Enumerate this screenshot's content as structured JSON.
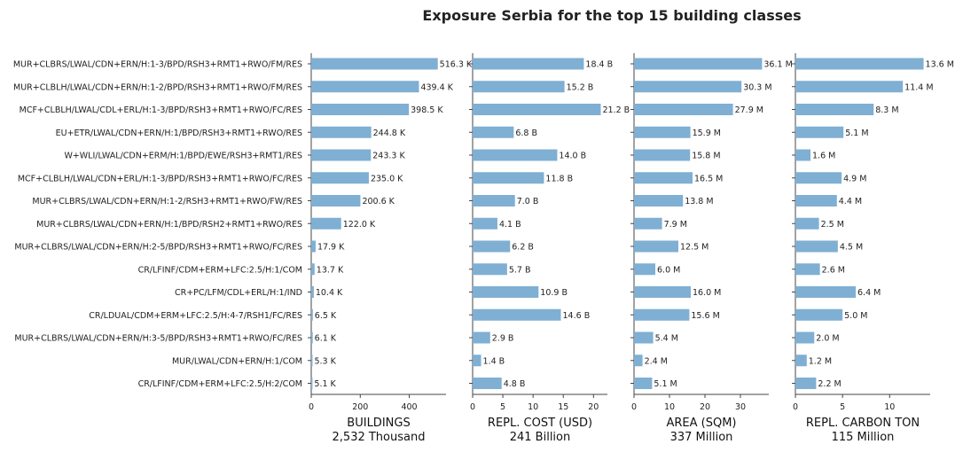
{
  "chart_data": {
    "type": "bar",
    "title": "Exposure Serbia for the top 15 building classes",
    "categories": [
      "MUR+CLBRS/LWAL/CDN+ERN/H:1-3/BPD/RSH3+RMT1+RWO/FM/RES",
      "MUR+CLBLH/LWAL/CDN+ERN/H:1-2/BPD/RSH3+RMT1+RWO/FM/RES",
      "MCF+CLBLH/LWAL/CDL+ERL/H:1-3/BPD/RSH3+RMT1+RWO/FC/RES",
      "EU+ETR/LWAL/CDN+ERN/H:1/BPD/RSH3+RMT1+RWO/RES",
      "W+WLI/LWAL/CDN+ERM/H:1/BPD/EWE/RSH3+RMT1/RES",
      "MCF+CLBLH/LWAL/CDN+ERL/H:1-3/BPD/RSH3+RMT1+RWO/FC/RES",
      "MUR+CLBRS/LWAL/CDN+ERN/H:1-2/RSH3+RMT1+RWO/FW/RES",
      "MUR+CLBRS/LWAL/CDN+ERN/H:1/BPD/RSH2+RMT1+RWO/RES",
      "MUR+CLBRS/LWAL/CDN+ERN/H:2-5/BPD/RSH3+RMT1+RWO/FC/RES",
      "CR/LFINF/CDM+ERM+LFC:2.5/H:1/COM",
      "CR+PC/LFM/CDL+ERL/H:1/IND",
      "CR/LDUAL/CDM+ERM+LFC:2.5/H:4-7/RSH1/FC/RES",
      "MUR+CLBRS/LWAL/CDN+ERN/H:3-5/BPD/RSH3+RMT1+RWO/FC/RES",
      "MUR/LWAL/CDN+ERN/H:1/COM",
      "CR/LFINF/CDM+ERM+LFC:2.5/H:2/COM"
    ],
    "panels": [
      {
        "xlabel": "BUILDINGS",
        "total": "2,532 Thousand",
        "xlim": [
          0,
          550
        ],
        "ticks": [
          0,
          200,
          400
        ],
        "values": [
          516.3,
          439.4,
          398.5,
          244.8,
          243.3,
          235.0,
          200.6,
          122.0,
          17.9,
          13.7,
          10.4,
          6.5,
          6.1,
          5.3,
          5.1
        ],
        "labels": [
          "516.3 K",
          "439.4 K",
          "398.5 K",
          "244.8 K",
          "243.3 K",
          "235.0 K",
          "200.6 K",
          "122.0 K",
          "17.9 K",
          "13.7 K",
          "10.4 K",
          "6.5 K",
          "6.1 K",
          "5.3 K",
          "5.1 K"
        ]
      },
      {
        "xlabel": "REPL. COST (USD)",
        "total": "241 Billion",
        "xlim": [
          0,
          22.3
        ],
        "ticks": [
          0,
          5,
          10,
          15,
          20
        ],
        "values": [
          18.4,
          15.2,
          21.2,
          6.8,
          14.0,
          11.8,
          7.0,
          4.1,
          6.2,
          5.7,
          10.9,
          14.6,
          2.9,
          1.4,
          4.8
        ],
        "labels": [
          "18.4 B",
          "15.2 B",
          "21.2 B",
          "6.8 B",
          "14.0 B",
          "11.8 B",
          "7.0 B",
          "4.1 B",
          "6.2 B",
          "5.7 B",
          "10.9 B",
          "14.6 B",
          "2.9 B",
          "1.4 B",
          "4.8 B"
        ]
      },
      {
        "xlabel": "AREA (SQM)",
        "total": "337 Million",
        "xlim": [
          0,
          38
        ],
        "ticks": [
          0,
          10,
          20,
          30
        ],
        "values": [
          36.1,
          30.3,
          27.9,
          15.9,
          15.8,
          16.5,
          13.8,
          7.9,
          12.5,
          6.0,
          16.0,
          15.6,
          5.4,
          2.4,
          5.1
        ],
        "labels": [
          "36.1 M",
          "30.3 M",
          "27.9 M",
          "15.9 M",
          "15.8 M",
          "16.5 M",
          "13.8 M",
          "7.9 M",
          "12.5 M",
          "6.0 M",
          "16.0 M",
          "15.6 M",
          "5.4 M",
          "2.4 M",
          "5.1 M"
        ]
      },
      {
        "xlabel": "REPL. CARBON TON",
        "total": "115 Million",
        "xlim": [
          0,
          14.3
        ],
        "ticks": [
          0,
          5,
          10
        ],
        "values": [
          13.6,
          11.4,
          8.3,
          5.1,
          1.6,
          4.9,
          4.4,
          2.5,
          4.5,
          2.6,
          6.4,
          5.0,
          2.0,
          1.2,
          2.2
        ],
        "labels": [
          "13.6 M",
          "11.4 M",
          "8.3 M",
          "5.1 M",
          "1.6 M",
          "4.9 M",
          "4.4 M",
          "2.5 M",
          "4.5 M",
          "2.6 M",
          "6.4 M",
          "5.0 M",
          "2.0 M",
          "1.2 M",
          "2.2 M"
        ]
      }
    ],
    "bar_color": "#7fafd3",
    "axis_color": "#444444"
  }
}
